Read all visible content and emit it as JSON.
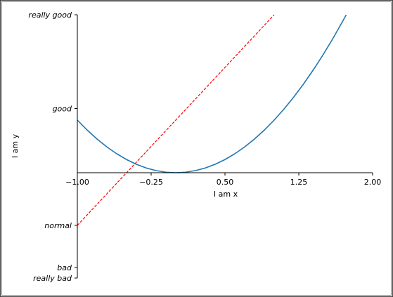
{
  "chart_data": {
    "type": "line",
    "xlabel": "I am x",
    "ylabel": "I am y",
    "xlim": [
      -1,
      2
    ],
    "ylim": [
      -2,
      3
    ],
    "xticks": [
      {
        "value": -1,
        "label": "−1.00"
      },
      {
        "value": -0.25,
        "label": "−0.25"
      },
      {
        "value": 0.5,
        "label": "0.50"
      },
      {
        "value": 1.25,
        "label": "1.25"
      },
      {
        "value": 2,
        "label": "2.00"
      }
    ],
    "yticks": [
      {
        "value": -2,
        "label": "really bad"
      },
      {
        "value": -1.8,
        "label": "bad"
      },
      {
        "value": -1,
        "label": "normal"
      },
      {
        "value": 1.22,
        "label": "good"
      },
      {
        "value": 3,
        "label": "really good"
      }
    ],
    "series": [
      {
        "color": "#1f77b4",
        "dash": false,
        "x": [
          -1,
          -0.9,
          -0.8,
          -0.7,
          -0.6,
          -0.5,
          -0.4,
          -0.3,
          -0.2,
          -0.1,
          0,
          0.1,
          0.2,
          0.3,
          0.4,
          0.5,
          0.6,
          0.7,
          0.8,
          0.9,
          1,
          1.1,
          1.2,
          1.3,
          1.4,
          1.5,
          1.6,
          1.7,
          1.732
        ],
        "values": [
          1,
          0.81,
          0.64,
          0.49,
          0.36,
          0.25,
          0.16,
          0.09,
          0.04,
          0.01,
          0,
          0.01,
          0.04,
          0.09,
          0.16,
          0.25,
          0.36,
          0.49,
          0.64,
          0.81,
          1,
          1.21,
          1.44,
          1.69,
          1.96,
          2.25,
          2.56,
          2.89,
          3
        ]
      },
      {
        "color": "#ff0000",
        "dash": true,
        "x": [
          -1,
          1
        ],
        "values": [
          -1,
          3
        ]
      }
    ]
  }
}
